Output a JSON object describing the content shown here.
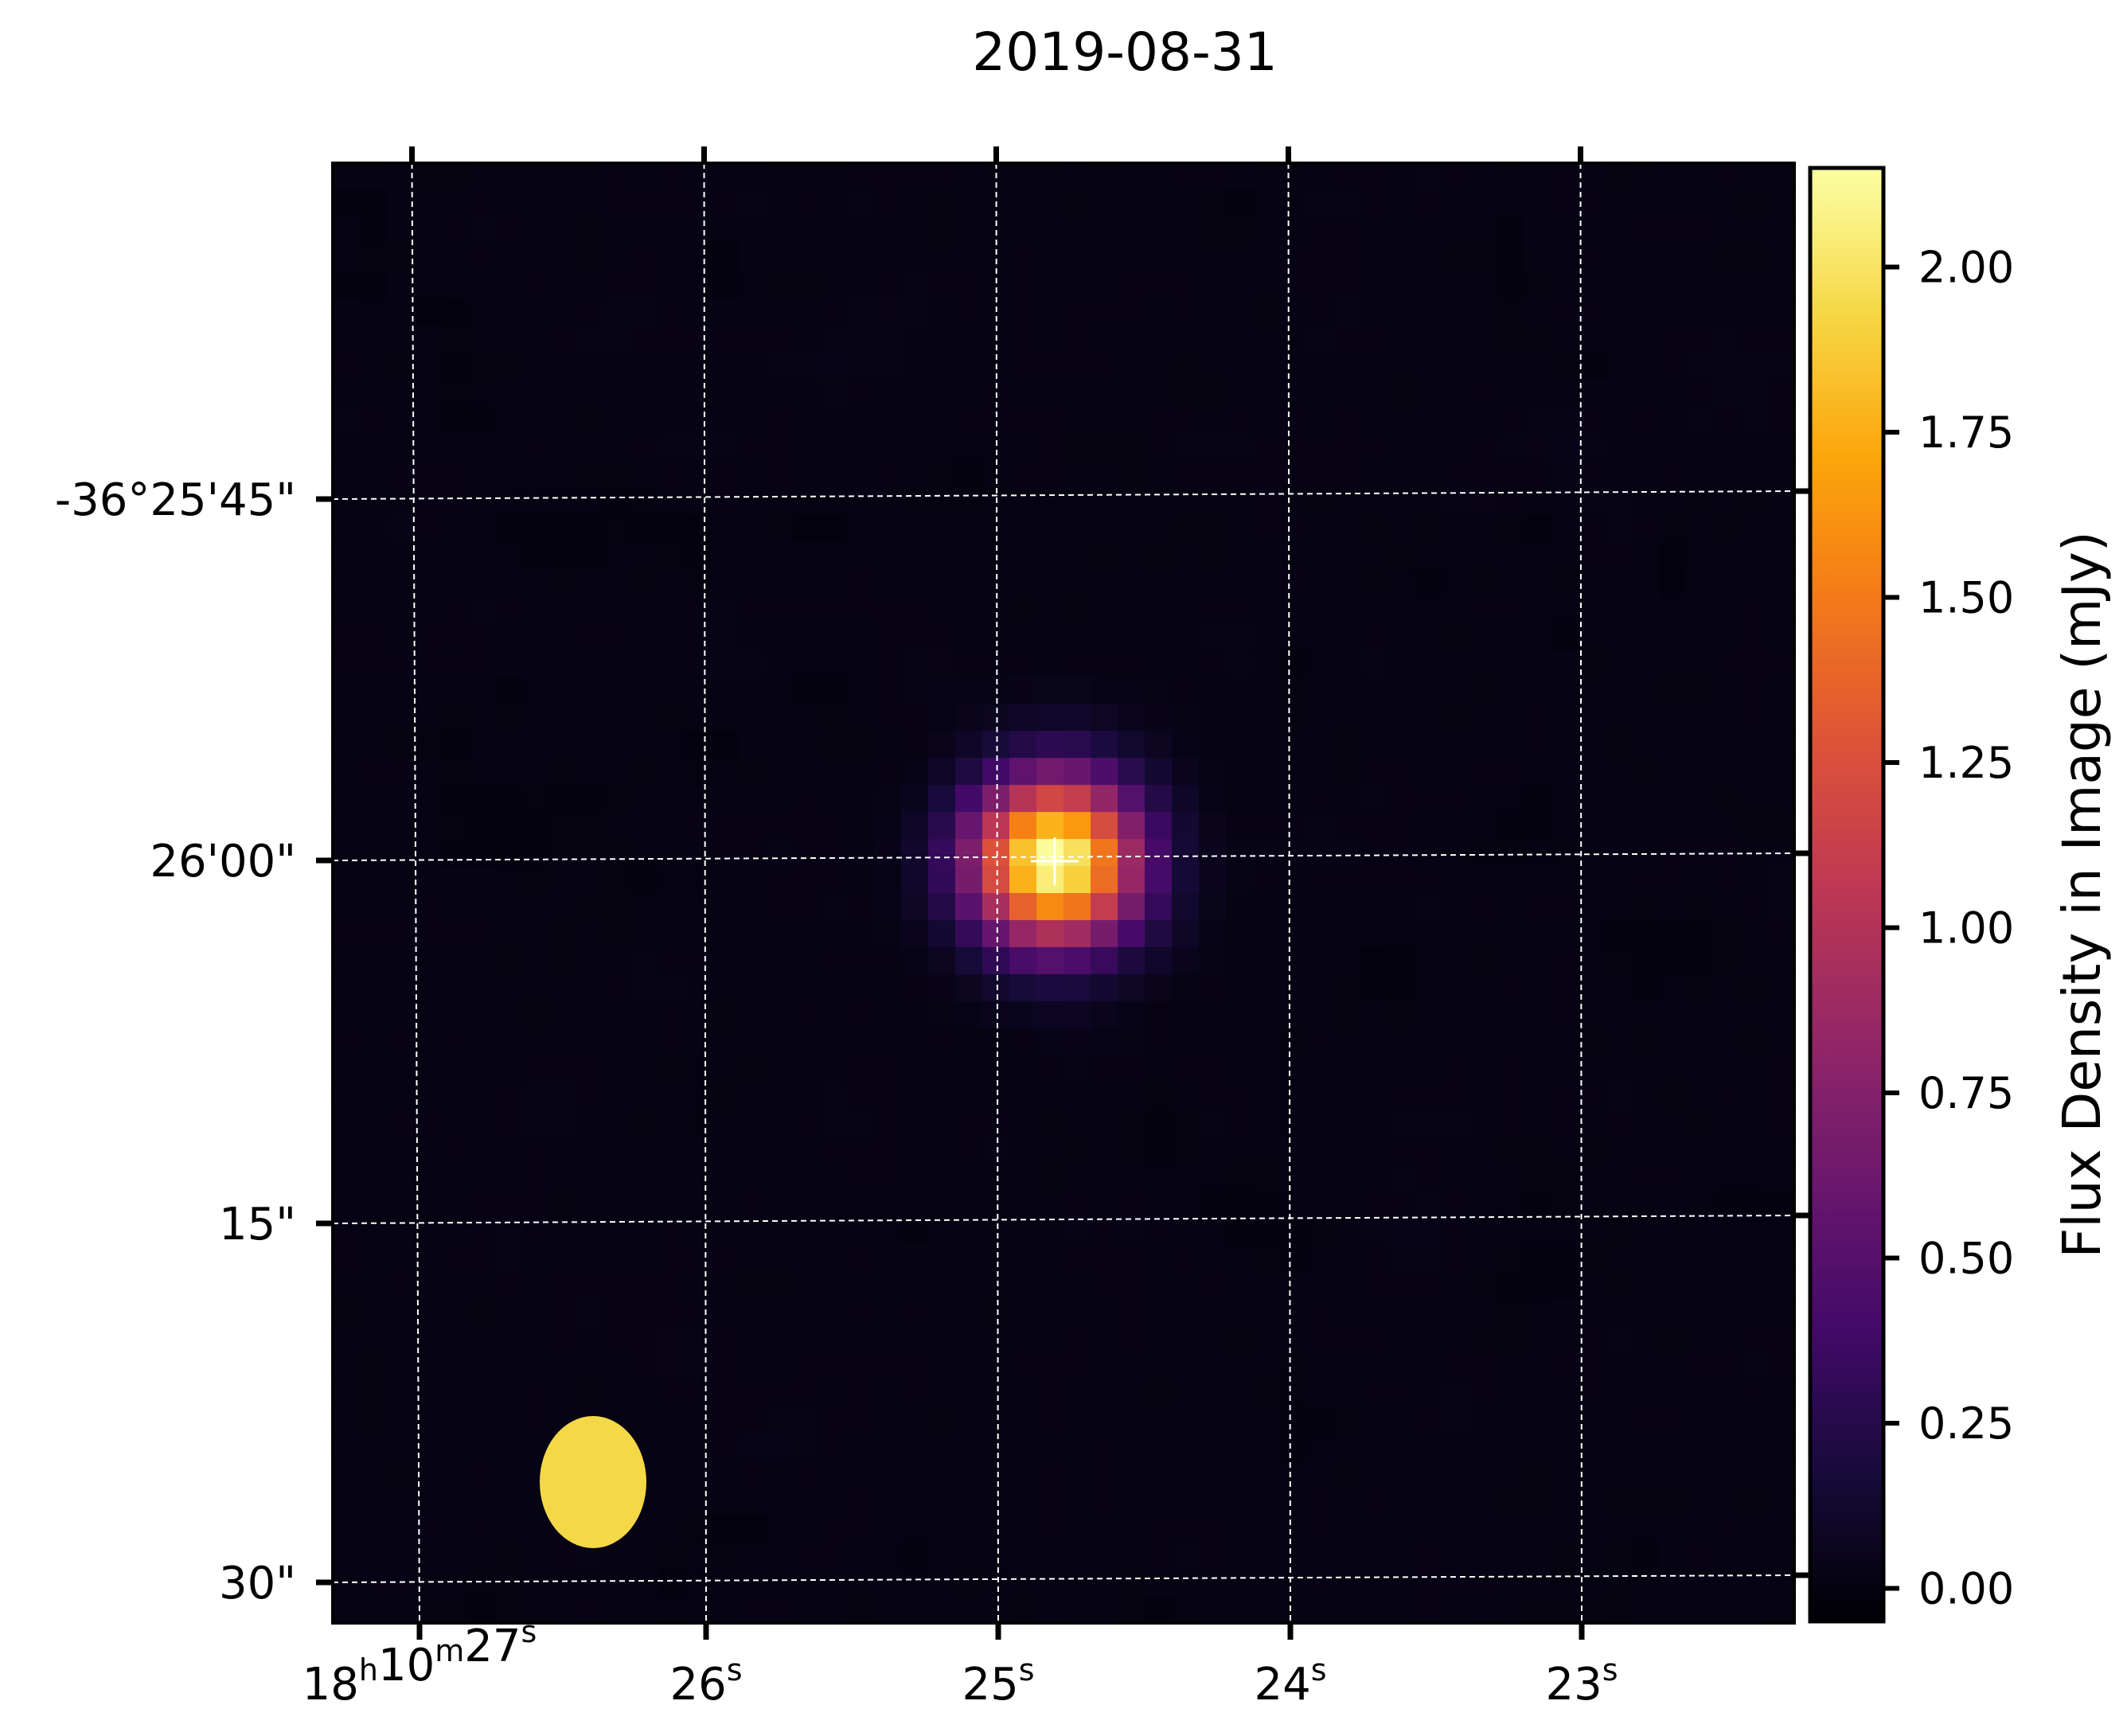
{
  "chart_data": {
    "type": "heatmap",
    "title": "2019-08-31",
    "x_ticks": [
      {
        "h": "18",
        "m": "10",
        "s": "27"
      },
      {
        "s": "26"
      },
      {
        "s": "25"
      },
      {
        "s": "24"
      },
      {
        "s": "23"
      }
    ],
    "y_ticks": [
      "-36°25'45\"",
      "26'00\"",
      "15\"",
      "30\""
    ],
    "colorbar": {
      "label": "Flux Density in Image (mJy)",
      "ticks": [
        "0.00",
        "0.25",
        "0.50",
        "0.75",
        "1.00",
        "1.25",
        "1.50",
        "1.75",
        "2.00"
      ],
      "tick_values": [
        0,
        0.25,
        0.5,
        0.75,
        1.0,
        1.25,
        1.5,
        1.75,
        2.0
      ],
      "range": [
        -0.05,
        2.15
      ],
      "colormap": "inferno"
    },
    "source": {
      "peak_mJy": 2.15,
      "ra_s": 24.8,
      "dec_arcsec_offset": 1.5
    },
    "beam": {
      "color": "#f5d848"
    },
    "grid": true,
    "grid_style": "dashed white"
  }
}
